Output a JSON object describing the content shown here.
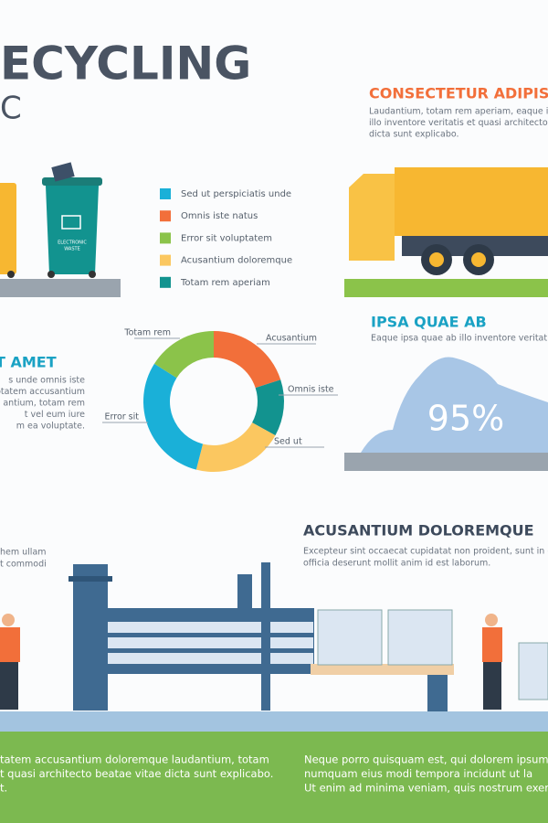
{
  "header": {
    "title": "ECYCLING",
    "subtitle": "C"
  },
  "bins": {
    "label_1": "ELECTRONIC",
    "label_2": "WASTE"
  },
  "legend": [
    {
      "label": "Sed ut perspiciatis unde",
      "color": "#1ab0d8"
    },
    {
      "label": "Omnis iste natus",
      "color": "#f26f3a"
    },
    {
      "label": "Error sit voluptatem",
      "color": "#8bc34a"
    },
    {
      "label": "Acusantium doloremque",
      "color": "#fbc760"
    },
    {
      "label": "Totam rem aperiam",
      "color": "#12938f"
    }
  ],
  "section_top": {
    "title": "CONSECTETUR ADIPIS",
    "lines": [
      "Laudantium, totam rem aperiam, eaque i",
      "illo inventore veritatis et quasi architecto",
      "dicta sunt explicabo."
    ]
  },
  "section_left": {
    "title": "T AMET",
    "lines": [
      "s unde omnis iste",
      "otatem accusantium",
      "antium, totam rem",
      "t vel eum iure",
      "m ea voluptate."
    ]
  },
  "donut": {
    "segments": [
      {
        "label": "Acusantium",
        "color": "#f26f3a",
        "value": 20
      },
      {
        "label": "Omnis iste",
        "color": "#12938f",
        "value": 13
      },
      {
        "label": "Sed ut",
        "color": "#fbc760",
        "value": 21
      },
      {
        "label": "Error sit",
        "color": "#1ab0d8",
        "value": 30
      },
      {
        "label": "Totam rem",
        "color": "#8bc34a",
        "value": 16
      }
    ]
  },
  "section_right": {
    "title": "IPSA QUAE AB",
    "lines": [
      "Eaque ipsa quae ab illo inventore veritatis"
    ],
    "stat": "95%"
  },
  "section_bottom": {
    "title": "ACUSANTIUM DOLOREMQUE",
    "lines": [
      "Excepteur sint occaecat cupidatat non proident, sunt in c",
      "officia deserunt mollit anim id est laborum."
    ]
  },
  "section_bottom_left": {
    "lines": [
      "hem ullam",
      "t commodi"
    ]
  },
  "footer": {
    "left": [
      "tatem accusantium doloremque laudantium, totam",
      "t quasi architecto beatae vitae dicta sunt explicabo.",
      "t."
    ],
    "right": [
      "Neque porro quisquam est, qui dolorem ipsum",
      "numquam eius modi tempora incidunt ut la",
      "Ut enim ad minima veniam, quis nostrum exer"
    ]
  }
}
